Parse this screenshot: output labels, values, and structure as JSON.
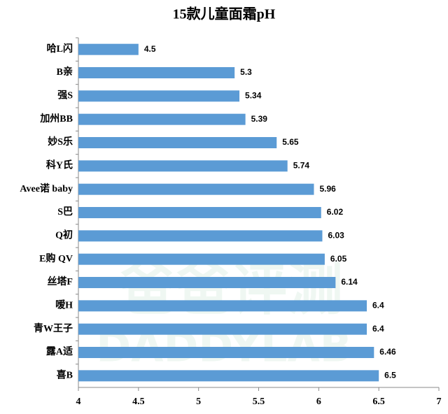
{
  "chart_data": {
    "type": "bar",
    "orientation": "horizontal",
    "title": "15款儿童面霜pH",
    "categories": [
      "哈L闪",
      "B亲",
      "强S",
      "加州BB",
      "妙S乐",
      "科Y氏",
      "Avee诺 baby",
      "S巴",
      "Q初",
      "E购 QV",
      "丝塔F",
      "嗳H",
      "青W王子",
      "露A适",
      "喜B"
    ],
    "values": [
      4.5,
      5.3,
      5.34,
      5.39,
      5.65,
      5.74,
      5.96,
      6.02,
      6.03,
      6.05,
      6.14,
      6.4,
      6.4,
      6.46,
      6.5
    ],
    "color": "#5b9bd5",
    "xlim": [
      4,
      7
    ],
    "xticks": [
      4,
      4.5,
      5,
      5.5,
      6,
      6.5,
      7
    ],
    "watermark": [
      "爸爸评测",
      "DADDYLAB"
    ]
  }
}
